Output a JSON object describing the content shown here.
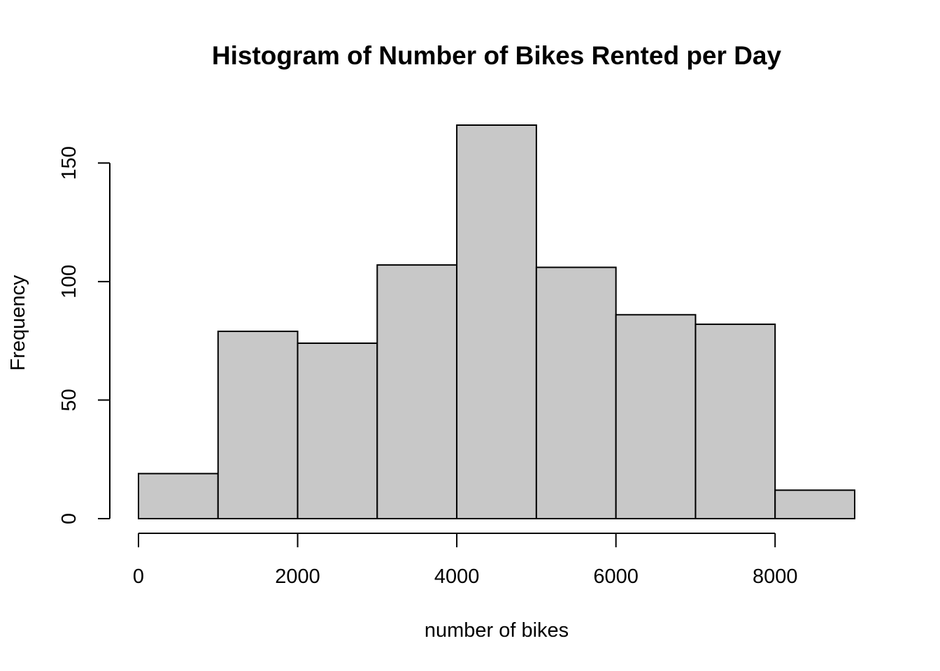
{
  "chart_data": {
    "type": "bar",
    "subtype": "histogram",
    "title": "Histogram of Number of Bikes Rented per Day",
    "xlabel": "number of bikes",
    "ylabel": "Frequency",
    "bins": [
      {
        "start": 0,
        "end": 1000,
        "count": 19
      },
      {
        "start": 1000,
        "end": 2000,
        "count": 79
      },
      {
        "start": 2000,
        "end": 3000,
        "count": 74
      },
      {
        "start": 3000,
        "end": 4000,
        "count": 107
      },
      {
        "start": 4000,
        "end": 5000,
        "count": 166
      },
      {
        "start": 5000,
        "end": 6000,
        "count": 106
      },
      {
        "start": 6000,
        "end": 7000,
        "count": 86
      },
      {
        "start": 7000,
        "end": 8000,
        "count": 82
      },
      {
        "start": 8000,
        "end": 9000,
        "count": 12
      }
    ],
    "xlim": [
      0,
      9000
    ],
    "ylim": [
      0,
      166
    ],
    "x_ticks": [
      0,
      2000,
      4000,
      6000,
      8000
    ],
    "x_tick_labels": [
      "0",
      "2000",
      "4000",
      "6000",
      "8000"
    ],
    "y_ticks": [
      0,
      50,
      100,
      150
    ],
    "y_tick_labels": [
      "0",
      "50",
      "100",
      "150"
    ],
    "grid": false,
    "legend": "none",
    "colors": {
      "bar_fill": "#c8c8c8",
      "bar_stroke": "#000000",
      "axis": "#000000",
      "text": "#000000"
    }
  }
}
